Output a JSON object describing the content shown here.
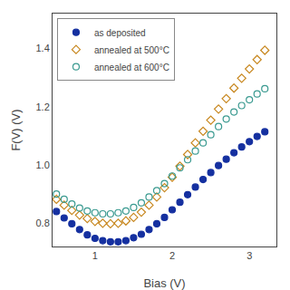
{
  "chart_data": {
    "type": "scatter",
    "xlabel": "Bias (V)",
    "ylabel": "F(V) (V)",
    "xlim": [
      0.45,
      3.35
    ],
    "ylim": [
      0.72,
      1.52
    ],
    "xticks": [
      1,
      2,
      3
    ],
    "yticks": [
      0.8,
      {
        "value": 1.0,
        "label": "1.0"
      },
      1.2,
      1.4
    ],
    "grid": false,
    "legend": "upper left",
    "x": [
      0.5,
      0.6,
      0.7,
      0.8,
      0.9,
      1.0,
      1.1,
      1.2,
      1.3,
      1.4,
      1.5,
      1.6,
      1.7,
      1.8,
      1.9,
      2.0,
      2.1,
      2.2,
      2.3,
      2.4,
      2.5,
      2.6,
      2.7,
      2.8,
      2.9,
      3.0,
      3.1,
      3.2
    ],
    "series": [
      {
        "name": "as deposited",
        "color": "#1530a0",
        "marker": "circle",
        "values": [
          0.84,
          0.818,
          0.798,
          0.778,
          0.76,
          0.748,
          0.74,
          0.736,
          0.736,
          0.74,
          0.75,
          0.762,
          0.778,
          0.798,
          0.82,
          0.846,
          0.872,
          0.898,
          0.924,
          0.95,
          0.974,
          0.998,
          1.02,
          1.042,
          1.062,
          1.08,
          1.098,
          1.114
        ]
      },
      {
        "name": "annealed at 500°C",
        "color": "#c88820",
        "marker": "diamond-open",
        "values": [
          0.882,
          0.862,
          0.844,
          0.828,
          0.816,
          0.806,
          0.8,
          0.798,
          0.8,
          0.808,
          0.82,
          0.838,
          0.862,
          0.89,
          0.922,
          0.958,
          0.996,
          1.036,
          1.076,
          1.116,
          1.154,
          1.192,
          1.228,
          1.264,
          1.298,
          1.33,
          1.362,
          1.394
        ]
      },
      {
        "name": "annealed at 600°C",
        "color": "#3a9a90",
        "marker": "circle-open",
        "values": [
          0.9,
          0.882,
          0.866,
          0.852,
          0.842,
          0.836,
          0.832,
          0.832,
          0.836,
          0.842,
          0.854,
          0.87,
          0.89,
          0.912,
          0.936,
          0.962,
          0.99,
          1.018,
          1.048,
          1.076,
          1.104,
          1.132,
          1.158,
          1.182,
          1.204,
          1.224,
          1.244,
          1.262
        ]
      }
    ]
  }
}
